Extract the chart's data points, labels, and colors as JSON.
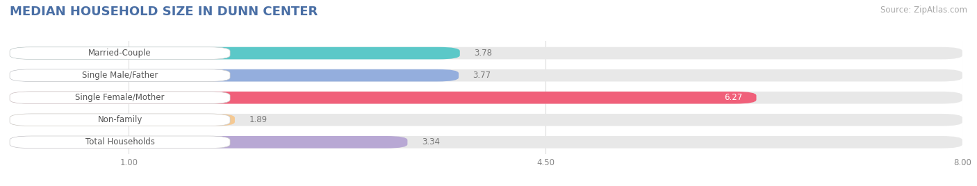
{
  "title": "MEDIAN HOUSEHOLD SIZE IN DUNN CENTER",
  "source": "Source: ZipAtlas.com",
  "categories": [
    "Married-Couple",
    "Single Male/Father",
    "Single Female/Mother",
    "Non-family",
    "Total Households"
  ],
  "values": [
    3.78,
    3.77,
    6.27,
    1.89,
    3.34
  ],
  "bar_colors": [
    "#5bc8c8",
    "#94aedd",
    "#f0607a",
    "#f5c993",
    "#b8a8d4"
  ],
  "bar_bg_color": "#e8e8e8",
  "xlim_data": [
    0.0,
    8.0
  ],
  "xaxis_min": 1.0,
  "xticks": [
    1.0,
    4.5,
    8.0
  ],
  "label_bg_color": "#ffffff",
  "label_text_color": "#555555",
  "value_label_outside_color": "#777777",
  "value_label_inside_color": "#ffffff",
  "title_color": "#4a6fa5",
  "title_fontsize": 13,
  "source_color": "#aaaaaa",
  "source_fontsize": 8.5,
  "bar_height": 0.55,
  "n_bars": 5
}
